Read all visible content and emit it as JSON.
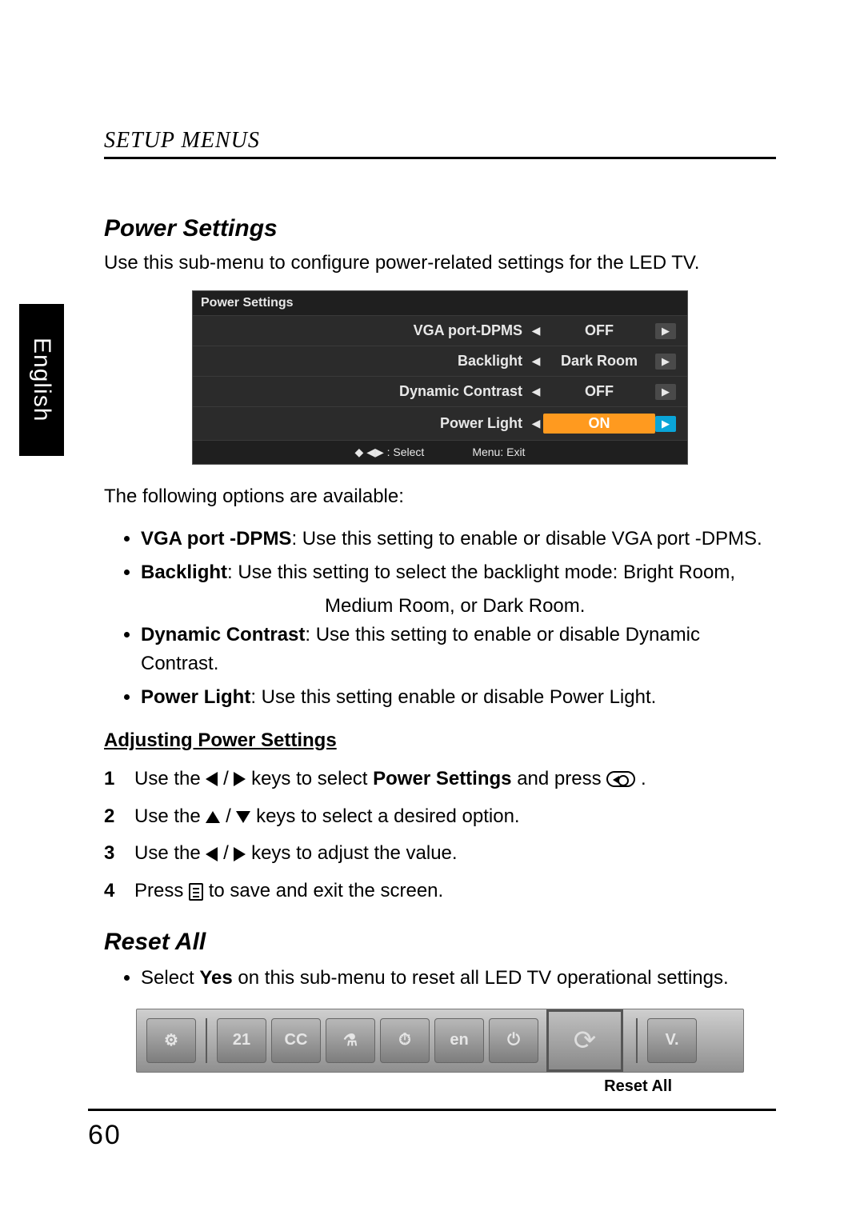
{
  "side_tab": "English",
  "section_header": "SETUP MENUS",
  "power": {
    "title": "Power Settings",
    "intro": "Use this sub-menu to configure power-related settings for the LED TV.",
    "menu": {
      "title": "Power Settings",
      "rows": [
        {
          "label": "VGA port-DPMS",
          "value": "OFF",
          "selected": false
        },
        {
          "label": "Backlight",
          "value": "Dark Room",
          "selected": false
        },
        {
          "label": "Dynamic Contrast",
          "value": "OFF",
          "selected": false
        },
        {
          "label": "Power Light",
          "value": "ON",
          "selected": true
        }
      ],
      "footer_select": "◆ ◀▶ : Select",
      "footer_exit": "Menu: Exit"
    },
    "options_intro": "The following options are available:",
    "options": [
      {
        "bold": "VGA port -DPMS",
        "text": ": Use this setting to enable or disable VGA port -DPMS."
      },
      {
        "bold": "Backlight",
        "text": ": Use this setting to select the backlight mode: Bright Room,"
      },
      {
        "bold": "Dynamic Contrast",
        "text": ": Use this setting to enable or disable Dynamic Contrast."
      },
      {
        "bold": "Power Light",
        "text": ": Use this setting enable or disable Power Light."
      }
    ],
    "backlight_cont": "Medium Room, or Dark Room.",
    "adjusting_title": "Adjusting Power Settings",
    "steps": {
      "s1a": "Use the ",
      "s1b": " keys to select ",
      "s1_bold": "Power Settings",
      "s1c": " and press ",
      "s2a": "Use the ",
      "s2b": " keys to select a desired option.",
      "s3a": "Use the ",
      "s3b": " keys to adjust the value.",
      "s4a": "Press ",
      "s4b": " to save and exit the screen."
    }
  },
  "reset": {
    "title": "Reset All",
    "bullet_a": "Select ",
    "bullet_bold": "Yes",
    "bullet_b": " on this sub-menu to reset all LED TV operational settings.",
    "icons": {
      "i1": "⚙",
      "i2": "21",
      "i3": "CC",
      "i4": "⚗",
      "i5": "⏱",
      "i6": "en",
      "i7": "⏻",
      "i8": "⟳",
      "i9": "V."
    },
    "caption": "Reset All"
  },
  "page_number": "60",
  "glyphs": {
    "slash": " / ",
    "period": "."
  }
}
